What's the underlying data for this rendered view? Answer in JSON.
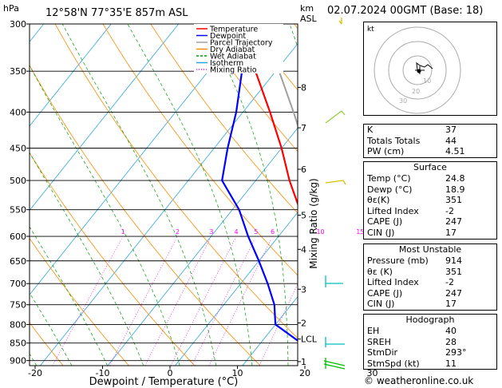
{
  "header": {
    "location": "12°58'N  77°35'E  857m  ASL",
    "datetime": "02.07.2024  00GMT  (Base: 18)",
    "hpa_label": "hPa",
    "km_label": "km",
    "asl_label": "ASL"
  },
  "chart_data": {
    "type": "line",
    "xlabel": "Dewpoint / Temperature (°C)",
    "ylabel_right": "Mixing Ratio (g/kg)",
    "x_ticks": [
      -40,
      -30,
      -20,
      -10,
      0,
      10,
      20,
      30
    ],
    "pressure_levels": [
      300,
      350,
      400,
      450,
      500,
      550,
      600,
      650,
      700,
      750,
      800,
      850,
      900
    ],
    "km_ticks": [
      {
        "label": "8",
        "p": 369
      },
      {
        "label": "7",
        "p": 421
      },
      {
        "label": "6",
        "p": 482
      },
      {
        "label": "5",
        "p": 560
      },
      {
        "label": "4",
        "p": 626
      },
      {
        "label": "3",
        "p": 713
      },
      {
        "label": "2",
        "p": 796
      },
      {
        "label": "LCL",
        "p": 839
      },
      {
        "label": "1",
        "p": 903
      }
    ],
    "mixing_ratio_labels": [
      "1",
      "2",
      "3",
      "4",
      "5",
      "6",
      "10",
      "15",
      "20",
      "25"
    ],
    "legend": [
      "Temperature",
      "Dewpoint",
      "Parcel Trajectory",
      "Dry Adiabat",
      "Wet Adiabat",
      "Isotherm",
      "Mixing Ratio"
    ],
    "series": [
      {
        "name": "Temperature",
        "color": "#ff0000",
        "points": [
          [
            24.8,
            914
          ],
          [
            21.5,
            880
          ],
          [
            19.0,
            850
          ],
          [
            16.5,
            800
          ],
          [
            13.5,
            750
          ],
          [
            10.5,
            700
          ],
          [
            7.5,
            650
          ],
          [
            4.0,
            600
          ],
          [
            0.0,
            550
          ],
          [
            -5.0,
            500
          ],
          [
            -10.0,
            450
          ],
          [
            -16.0,
            400
          ],
          [
            -23.0,
            350
          ]
        ]
      },
      {
        "name": "Dewpoint",
        "color": "#0000ff",
        "points": [
          [
            18.9,
            914
          ],
          [
            17.5,
            880
          ],
          [
            16.0,
            850
          ],
          [
            10.0,
            800
          ],
          [
            7.5,
            750
          ],
          [
            4.0,
            700
          ],
          [
            0.0,
            650
          ],
          [
            -4.5,
            600
          ],
          [
            -9.0,
            550
          ],
          [
            -15.0,
            500
          ],
          [
            -18.0,
            450
          ],
          [
            -21.0,
            400
          ],
          [
            -25.0,
            350
          ],
          [
            -27.0,
            335
          ]
        ]
      },
      {
        "name": "Parcel Trajectory",
        "color": "#a0a0a0",
        "points": [
          [
            24.8,
            914
          ],
          [
            20.5,
            860
          ],
          [
            19.0,
            839
          ],
          [
            15.0,
            780
          ],
          [
            12.0,
            720
          ],
          [
            9.0,
            650
          ],
          [
            6.0,
            600
          ],
          [
            2.5,
            550
          ],
          [
            -1.5,
            500
          ],
          [
            -6.5,
            450
          ],
          [
            -12.5,
            400
          ],
          [
            -19.5,
            350
          ]
        ]
      }
    ]
  },
  "hodograph": {
    "unit_label": "kt",
    "ring_labels": [
      "10",
      "20",
      "30"
    ]
  },
  "indices": [
    {
      "label": "K",
      "value": "37"
    },
    {
      "label": "Totals Totals",
      "value": "44"
    },
    {
      "label": "PW (cm)",
      "value": "4.51"
    }
  ],
  "surface": {
    "title": "Surface",
    "rows": [
      {
        "label": "Temp (°C)",
        "value": "24.8"
      },
      {
        "label": "Dewp (°C)",
        "value": "18.9"
      },
      {
        "label": "θε(K)",
        "value": "351"
      },
      {
        "label": "Lifted Index",
        "value": "-2"
      },
      {
        "label": "CAPE (J)",
        "value": "247"
      },
      {
        "label": "CIN (J)",
        "value": "17"
      }
    ]
  },
  "most_unstable": {
    "title": "Most Unstable",
    "rows": [
      {
        "label": "Pressure (mb)",
        "value": "914"
      },
      {
        "label": "θε (K)",
        "value": "351"
      },
      {
        "label": "Lifted Index",
        "value": "-2"
      },
      {
        "label": "CAPE (J)",
        "value": "247"
      },
      {
        "label": "CIN (J)",
        "value": "17"
      }
    ]
  },
  "hodograph_table": {
    "title": "Hodograph",
    "rows": [
      {
        "label": "EH",
        "value": "40"
      },
      {
        "label": "SREH",
        "value": "28"
      },
      {
        "label": "StmDir",
        "value": "293°"
      },
      {
        "label": "StmSpd (kt)",
        "value": "11"
      }
    ]
  },
  "credit": "© weatheronline.co.uk"
}
